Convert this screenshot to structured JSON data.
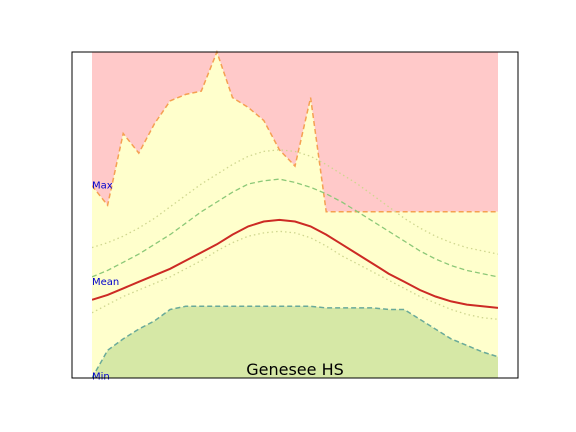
{
  "chart_data": {
    "type": "area",
    "title": "Genesee HS",
    "xlabel": "",
    "ylabel": "",
    "xlim": [
      0,
      52
    ],
    "ylim": [
      0,
      100
    ],
    "grid": false,
    "axes_ticks_visible": false,
    "ref_labels": [
      "Max",
      "Mean",
      "Min"
    ],
    "ref_label_values": [
      59,
      29.5,
      0.5
    ],
    "x": [
      0,
      2,
      4,
      6,
      8,
      10,
      12,
      14,
      16,
      18,
      20,
      22,
      24,
      26,
      28,
      30,
      32,
      34,
      36,
      38,
      40,
      42,
      44,
      46,
      48,
      50,
      52
    ],
    "series": [
      {
        "values": [
          59,
          53,
          75,
          69,
          78,
          85,
          87,
          88,
          100,
          86,
          83,
          79,
          70,
          65,
          86,
          51,
          51,
          51,
          51,
          51,
          51,
          51,
          51,
          51,
          51,
          51,
          51
        ]
      },
      {
        "values": [
          80,
          80,
          80,
          80,
          80,
          80,
          80,
          80,
          80,
          80,
          80,
          80,
          80,
          80,
          80,
          80,
          80,
          80,
          80,
          80,
          80,
          80,
          80,
          80,
          80,
          80,
          80
        ]
      },
      {
        "values": [
          40,
          41.5,
          43.5,
          46,
          49,
          52.5,
          56,
          59.5,
          62.5,
          65.5,
          68,
          69.5,
          70,
          69.5,
          68,
          65.5,
          62.5,
          59.5,
          56,
          52.5,
          49,
          46,
          43.5,
          41.5,
          40,
          39,
          38
        ]
      },
      {
        "values": [
          31,
          33,
          35.5,
          38,
          41,
          44,
          47.5,
          51,
          54,
          57,
          59.5,
          60.5,
          61,
          60,
          58.5,
          56.5,
          54,
          51,
          48,
          45,
          42,
          39,
          36.5,
          34.5,
          33,
          32,
          31
        ]
      },
      {
        "values": [
          24,
          25.5,
          27.5,
          29.5,
          31.5,
          33.5,
          36,
          38.5,
          41,
          44,
          46.5,
          48,
          48.5,
          48,
          46.5,
          44,
          41,
          38,
          35,
          32,
          29.5,
          27,
          25,
          23.5,
          22.5,
          22,
          21.5
        ]
      },
      {
        "values": [
          20,
          22.5,
          25,
          27,
          29,
          31,
          33.5,
          36,
          39,
          41.5,
          43.5,
          44.5,
          45,
          44.5,
          43,
          40.5,
          37.5,
          35,
          32.5,
          30,
          27.5,
          25,
          23,
          21,
          19.5,
          18.5,
          18
        ]
      },
      {
        "values": [
          0,
          8.5,
          12,
          15,
          17.5,
          21,
          22,
          22,
          22,
          22,
          22,
          22,
          22,
          22,
          22,
          21.5,
          21.5,
          21.5,
          21.5,
          21,
          21,
          18,
          15,
          12,
          10,
          8,
          6.5
        ]
      }
    ],
    "colors": {
      "above_max_fill": "#ffc9c9",
      "band_fill": "#ffffcc",
      "below_min_fill": "#d6e8a6",
      "max_line": "#f5a052",
      "outer_dotted": "#cfd68f",
      "inner_dashed": "#8cc878",
      "mean_line": "#cc2a24",
      "min_line": "#6aaa99",
      "ref_label": "#0000cc"
    }
  }
}
